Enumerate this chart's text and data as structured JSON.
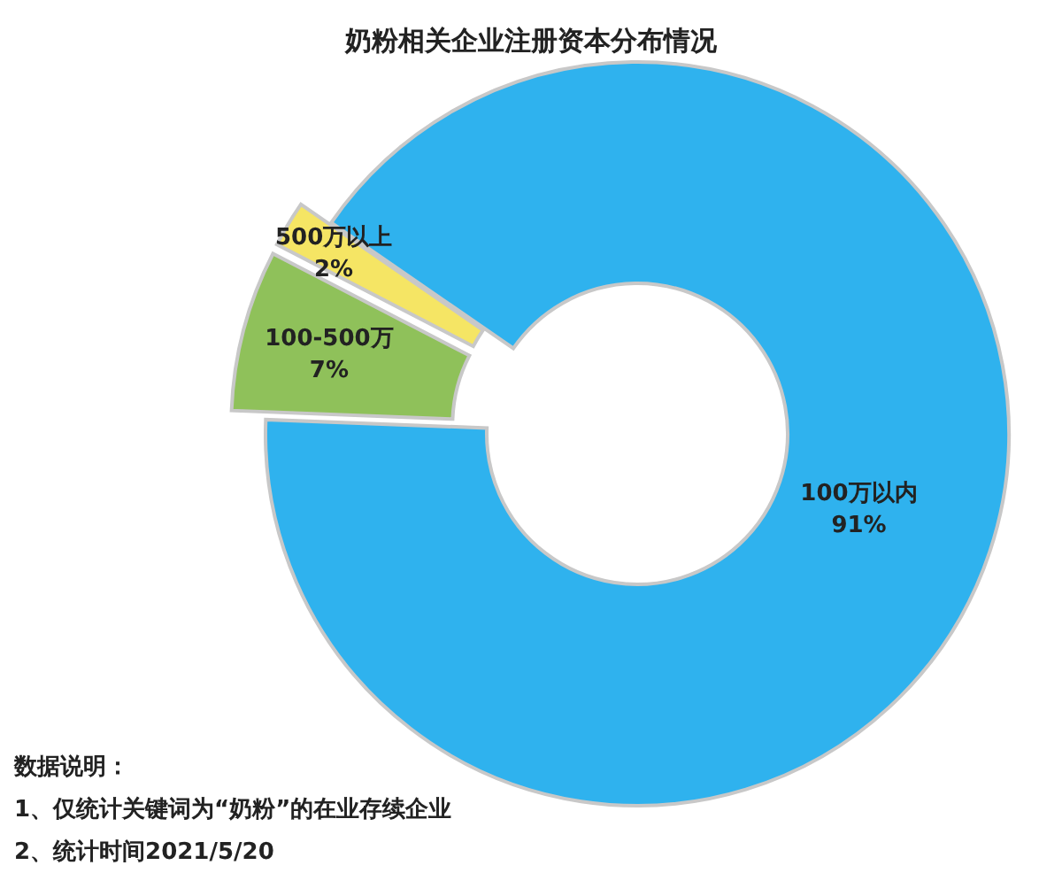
{
  "chart_data": {
    "type": "donut",
    "title": "奶粉相关企业注册资本分布情况",
    "categories": [
      "100万以内",
      "100-500万",
      "500万以上"
    ],
    "values": [
      91,
      7,
      2
    ],
    "value_labels": [
      "91%",
      "7%",
      "2%"
    ],
    "colors": [
      "#2fb2ee",
      "#8fc15a",
      "#f5e564"
    ],
    "annotations": [
      "数据说明：",
      "1、仅统计关键词为“奶粉”的在业存续企业",
      "2、统计时间2021/5/20"
    ]
  }
}
